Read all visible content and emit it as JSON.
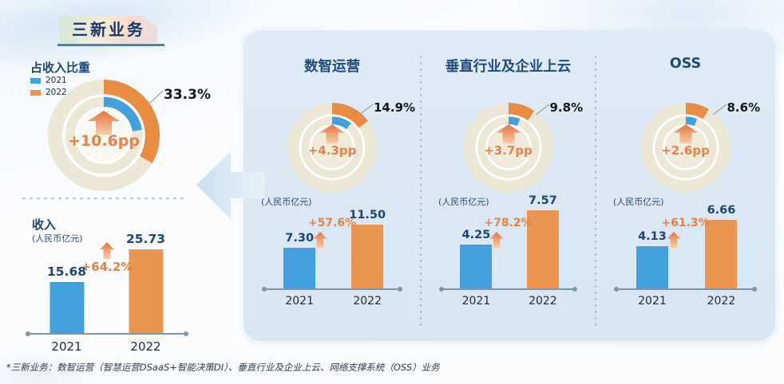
{
  "page": {
    "title": "三新业务",
    "footnote": "*三新业务：数智运营（智慧运营DSaaS+智能决策DI）、垂直行业及企业上云、网络支撑系统（OSS）业务"
  },
  "legend": {
    "items": [
      {
        "label": "2021",
        "color": "#42A1DD"
      },
      {
        "label": "2022",
        "color": "#EA9550"
      }
    ]
  },
  "colors": {
    "blue": "#42A1DD",
    "orange": "#EA9550",
    "arc_orange": "#E78C41",
    "donut_beige": "#EDE7D6",
    "navy": "#1E4470",
    "accent_orange": "#E8803F",
    "panel_bg": "#DCE9F5",
    "axis": "#7E95AE"
  },
  "chart_data": [
    {
      "group": "三新业务",
      "share_donut": {
        "type": "pie",
        "subtype": "double-ring-donut",
        "title": "占收入比重",
        "categories": [
          "2021",
          "2022"
        ],
        "values_pct": [
          22.7,
          33.3
        ],
        "shown_pct_label": "33.3%",
        "delta_label": "+10.6pp",
        "legend_position": "top-left"
      },
      "revenue_bar": {
        "type": "bar",
        "title": "收入",
        "unit": "(人民币亿元)",
        "categories": [
          "2021",
          "2022"
        ],
        "values": [
          15.68,
          25.73
        ],
        "value_labels": [
          "15.68",
          "25.73"
        ],
        "growth_label": "+64.2%"
      }
    },
    {
      "group": "数智运营",
      "share_donut": {
        "type": "pie",
        "subtype": "double-ring-donut",
        "categories": [
          "2021",
          "2022"
        ],
        "values_pct": [
          10.6,
          14.9
        ],
        "shown_pct_label": "14.9%",
        "delta_label": "+4.3pp"
      },
      "revenue_bar": {
        "type": "bar",
        "unit": "(人民币亿元)",
        "categories": [
          "2021",
          "2022"
        ],
        "values": [
          7.3,
          11.5
        ],
        "value_labels": [
          "7.30",
          "11.50"
        ],
        "growth_label": "+57.6%"
      }
    },
    {
      "group": "垂直行业及企业上云",
      "share_donut": {
        "type": "pie",
        "subtype": "double-ring-donut",
        "categories": [
          "2021",
          "2022"
        ],
        "values_pct": [
          6.1,
          9.8
        ],
        "shown_pct_label": "9.8%",
        "delta_label": "+3.7pp"
      },
      "revenue_bar": {
        "type": "bar",
        "unit": "(人民币亿元)",
        "categories": [
          "2021",
          "2022"
        ],
        "values": [
          4.25,
          7.57
        ],
        "value_labels": [
          "4.25",
          "7.57"
        ],
        "growth_label": "+78.2%"
      }
    },
    {
      "group": "OSS",
      "share_donut": {
        "type": "pie",
        "subtype": "double-ring-donut",
        "categories": [
          "2021",
          "2022"
        ],
        "values_pct": [
          6.0,
          8.6
        ],
        "shown_pct_label": "8.6%",
        "delta_label": "+2.6pp"
      },
      "revenue_bar": {
        "type": "bar",
        "unit": "(人民币亿元)",
        "categories": [
          "2021",
          "2022"
        ],
        "values": [
          4.13,
          6.66
        ],
        "value_labels": [
          "4.13",
          "6.66"
        ],
        "growth_label": "+61.3%"
      }
    }
  ]
}
